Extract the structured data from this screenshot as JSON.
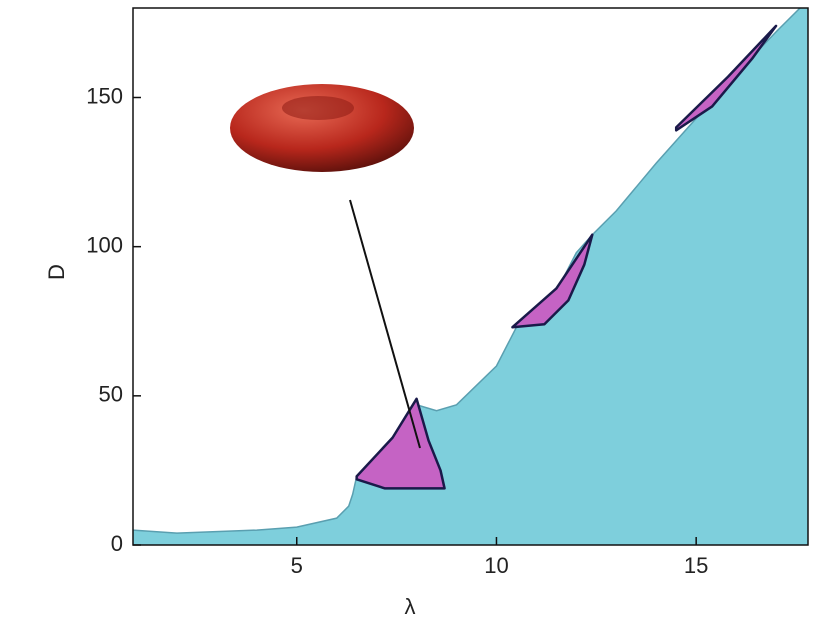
{
  "chart_data": {
    "type": "area",
    "xlabel": "λ",
    "ylabel": "D",
    "xlim": [
      0.9,
      17.8
    ],
    "ylim": [
      0,
      180
    ],
    "xticks": [
      5,
      10,
      15
    ],
    "yticks": [
      0,
      50,
      100,
      150
    ],
    "color": "#7ecfdc",
    "line_color": "#5a9fb0",
    "x": [
      0.9,
      2,
      4,
      5,
      6,
      6.3,
      6.4,
      6.5,
      7.5,
      8,
      8.5,
      9,
      10,
      10.5,
      11.5,
      12,
      12.4,
      13,
      14,
      15,
      16,
      17,
      17.6
    ],
    "values": [
      5,
      4,
      5,
      6,
      9,
      13,
      17,
      23,
      35,
      47,
      45,
      47,
      60,
      73,
      85,
      98,
      104,
      112,
      128,
      143,
      158,
      172,
      180
    ],
    "region_color": "#c563c4",
    "regions": [
      {
        "x": [
          6.5,
          7.4,
          8.0,
          8.3,
          8.6,
          8.7,
          7.2,
          6.5
        ],
        "y": [
          23,
          36,
          49,
          35,
          25,
          19,
          19,
          22
        ]
      },
      {
        "x": [
          10.4,
          11.5,
          12.4,
          12.2,
          11.8,
          11.2,
          10.4
        ],
        "y": [
          73,
          86,
          104,
          94,
          82,
          74,
          73
        ]
      },
      {
        "x": [
          14.5,
          15.8,
          17.0,
          16.4,
          15.4,
          14.5
        ],
        "y": [
          140,
          157,
          174,
          163,
          147,
          139
        ]
      }
    ]
  }
}
